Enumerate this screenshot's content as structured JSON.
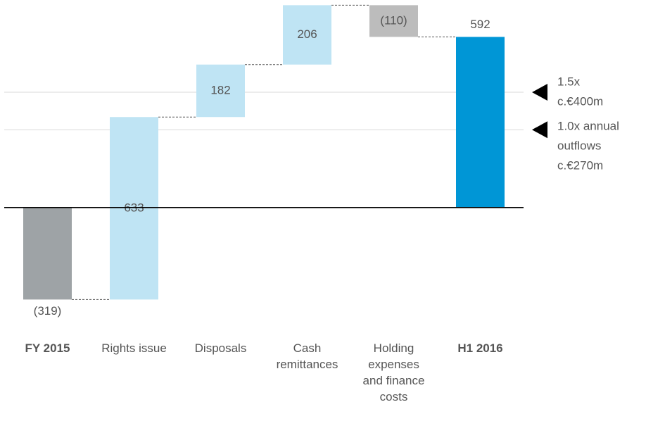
{
  "chart_data": {
    "type": "waterfall",
    "categories": [
      "FY 2015",
      "Rights issue",
      "Disposals",
      "Cash remittances",
      "Holding expenses and finance costs",
      "H1 2016"
    ],
    "measure": [
      "absolute",
      "relative",
      "relative",
      "relative",
      "relative",
      "total"
    ],
    "values": [
      -319,
      633,
      182,
      206,
      -110,
      592
    ],
    "value_labels": [
      "(319)",
      "633",
      "182",
      "206",
      "(110)",
      "592"
    ],
    "colors": [
      "#9ea3a6",
      "#bfe4f4",
      "#bfe4f4",
      "#bfe4f4",
      "#bcbcbc",
      "#0096d6"
    ],
    "ylim": [
      -340,
      720
    ],
    "reference_lines": [
      {
        "value": 400,
        "label": [
          "1.5x",
          "c.€400m"
        ]
      },
      {
        "value": 270,
        "label": [
          "1.0x annual",
          "outflows",
          "c.€270m"
        ]
      }
    ]
  }
}
